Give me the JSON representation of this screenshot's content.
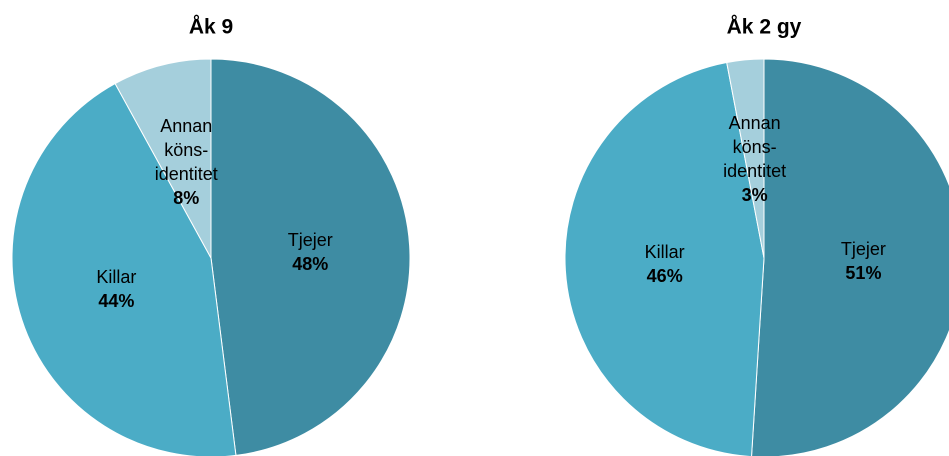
{
  "chart_data": [
    {
      "type": "pie",
      "title": "Åk 9",
      "categories": [
        "Tjejer",
        "Killar",
        "Annan köns-identitet"
      ],
      "values": [
        48,
        44,
        8
      ],
      "value_labels": [
        "48%",
        "44%",
        "8%"
      ],
      "colors": [
        "#3e8ca3",
        "#4bacc6",
        "#a5cfdc"
      ]
    },
    {
      "type": "pie",
      "title": "Åk 2 gy",
      "categories": [
        "Tjejer",
        "Killar",
        "Annan köns-identitet"
      ],
      "values": [
        51,
        46,
        3
      ],
      "value_labels": [
        "51%",
        "46%",
        "3%"
      ],
      "colors": [
        "#3e8ca3",
        "#4bacc6",
        "#a5cfdc"
      ]
    }
  ]
}
